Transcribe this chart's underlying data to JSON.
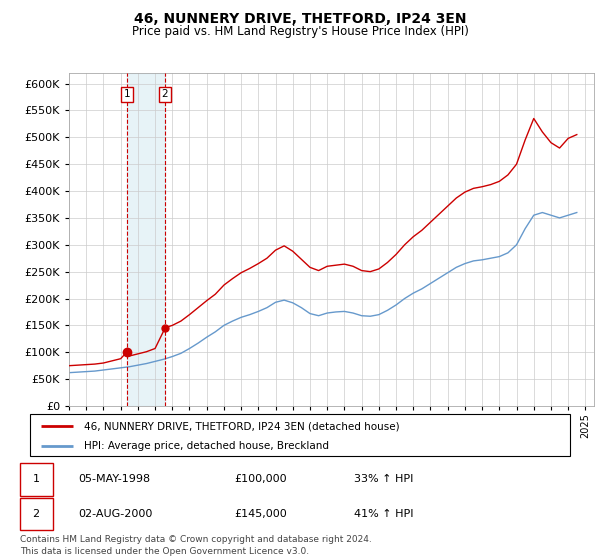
{
  "title": "46, NUNNERY DRIVE, THETFORD, IP24 3EN",
  "subtitle": "Price paid vs. HM Land Registry's House Price Index (HPI)",
  "ylim": [
    0,
    620000
  ],
  "yticks": [
    0,
    50000,
    100000,
    150000,
    200000,
    250000,
    300000,
    350000,
    400000,
    450000,
    500000,
    550000,
    600000
  ],
  "xlim_start": 1995.0,
  "xlim_end": 2025.5,
  "legend_line1": "46, NUNNERY DRIVE, THETFORD, IP24 3EN (detached house)",
  "legend_line2": "HPI: Average price, detached house, Breckland",
  "transaction1_date": "05-MAY-1998",
  "transaction1_price": "£100,000",
  "transaction1_hpi": "33% ↑ HPI",
  "transaction2_date": "02-AUG-2000",
  "transaction2_price": "£145,000",
  "transaction2_hpi": "41% ↑ HPI",
  "footer": "Contains HM Land Registry data © Crown copyright and database right 2024.\nThis data is licensed under the Open Government Licence v3.0.",
  "red_color": "#cc0000",
  "blue_color": "#6699cc",
  "transaction1_x": 1998.35,
  "transaction1_y": 100000,
  "transaction2_x": 2000.58,
  "transaction2_y": 145000,
  "hpi_years": [
    1995,
    1995.5,
    1996,
    1996.5,
    1997,
    1997.5,
    1998,
    1998.5,
    1999,
    1999.5,
    2000,
    2000.5,
    2001,
    2001.5,
    2002,
    2002.5,
    2003,
    2003.5,
    2004,
    2004.5,
    2005,
    2005.5,
    2006,
    2006.5,
    2007,
    2007.5,
    2008,
    2008.5,
    2009,
    2009.5,
    2010,
    2010.5,
    2011,
    2011.5,
    2012,
    2012.5,
    2013,
    2013.5,
    2014,
    2014.5,
    2015,
    2015.5,
    2016,
    2016.5,
    2017,
    2017.5,
    2018,
    2018.5,
    2019,
    2019.5,
    2020,
    2020.5,
    2021,
    2021.5,
    2022,
    2022.5,
    2023,
    2023.5,
    2024,
    2024.5
  ],
  "hpi_values": [
    62000,
    63000,
    64000,
    65000,
    67000,
    69000,
    71000,
    73000,
    76000,
    79000,
    83000,
    87000,
    92000,
    98000,
    107000,
    117000,
    128000,
    138000,
    150000,
    158000,
    165000,
    170000,
    176000,
    183000,
    193000,
    197000,
    192000,
    183000,
    172000,
    168000,
    173000,
    175000,
    176000,
    173000,
    168000,
    167000,
    170000,
    178000,
    188000,
    200000,
    210000,
    218000,
    228000,
    238000,
    248000,
    258000,
    265000,
    270000,
    272000,
    275000,
    278000,
    285000,
    300000,
    330000,
    355000,
    360000,
    355000,
    350000,
    355000,
    360000
  ],
  "red_years": [
    1995,
    1995.5,
    1996,
    1996.5,
    1997,
    1997.5,
    1998,
    1998.35,
    1998.5,
    1999,
    1999.5,
    2000,
    2000.58,
    2000.8,
    2001,
    2001.5,
    2002,
    2002.5,
    2003,
    2003.5,
    2004,
    2004.5,
    2005,
    2005.5,
    2006,
    2006.5,
    2007,
    2007.5,
    2008,
    2008.5,
    2009,
    2009.5,
    2010,
    2010.5,
    2011,
    2011.5,
    2012,
    2012.5,
    2013,
    2013.5,
    2014,
    2014.5,
    2015,
    2015.5,
    2016,
    2016.5,
    2017,
    2017.5,
    2018,
    2018.5,
    2019,
    2019.5,
    2020,
    2020.5,
    2021,
    2021.5,
    2022,
    2022.5,
    2023,
    2023.5,
    2024,
    2024.5
  ],
  "red_values": [
    75000,
    76000,
    77000,
    78000,
    80000,
    84000,
    88000,
    100000,
    93000,
    97000,
    101000,
    107000,
    145000,
    148000,
    150000,
    158000,
    170000,
    183000,
    196000,
    208000,
    225000,
    237000,
    248000,
    256000,
    265000,
    275000,
    290000,
    298000,
    288000,
    273000,
    258000,
    252000,
    260000,
    262000,
    264000,
    260000,
    252000,
    250000,
    255000,
    267000,
    282000,
    300000,
    315000,
    327000,
    342000,
    357000,
    372000,
    387000,
    398000,
    405000,
    408000,
    412000,
    418000,
    430000,
    450000,
    495000,
    535000,
    510000,
    490000,
    480000,
    498000,
    505000
  ]
}
